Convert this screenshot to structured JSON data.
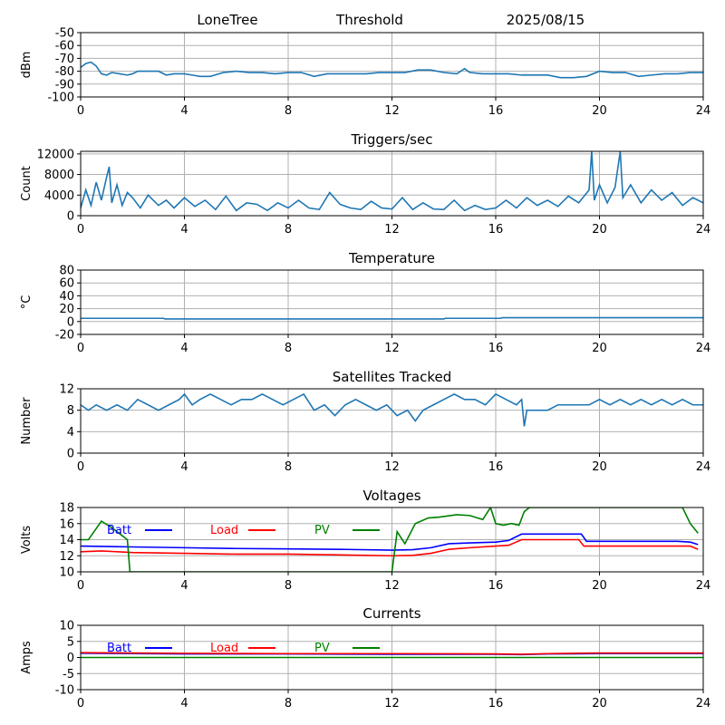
{
  "header": {
    "station": "LoneTree",
    "mode": "Threshold",
    "date": "2025/08/15"
  },
  "colors": {
    "series": "#1f77b4",
    "batt": "#0000ff",
    "load": "#ff0000",
    "pv": "#008000",
    "grid": "#b0b0b0"
  },
  "chart_data": [
    {
      "type": "line",
      "title": "",
      "ylabel": "dBm",
      "xlim": [
        0,
        24
      ],
      "ylim": [
        -100,
        -50
      ],
      "xticks": [
        0,
        4,
        8,
        12,
        16,
        20,
        24
      ],
      "yticks": [
        -100,
        -90,
        -80,
        -70,
        -60,
        -50
      ],
      "grid": true,
      "series": [
        {
          "x": [
            0,
            0.2,
            0.4,
            0.6,
            0.8,
            1.0,
            1.2,
            1.5,
            1.8,
            2.0,
            2.2,
            2.5,
            2.8,
            3.0,
            3.3,
            3.6,
            4.0,
            4.3,
            4.6,
            5.0,
            5.5,
            6.0,
            6.5,
            7.0,
            7.5,
            8.0,
            8.5,
            9.0,
            9.5,
            10.0,
            10.5,
            11.0,
            11.5,
            12.0,
            12.5,
            13.0,
            13.5,
            14.0,
            14.5,
            14.8,
            15.0,
            15.5,
            16.0,
            16.5,
            17.0,
            17.5,
            18.0,
            18.5,
            19.0,
            19.5,
            20.0,
            20.5,
            21.0,
            21.5,
            22.0,
            22.5,
            23.0,
            23.5,
            24.0
          ],
          "y": [
            -77,
            -74,
            -73,
            -76,
            -82,
            -83,
            -81,
            -82,
            -83,
            -82,
            -80,
            -80,
            -80,
            -80,
            -83,
            -82,
            -82,
            -83,
            -84,
            -84,
            -81,
            -80,
            -81,
            -81,
            -82,
            -81,
            -81,
            -84,
            -82,
            -82,
            -82,
            -82,
            -81,
            -81,
            -81,
            -79,
            -79,
            -81,
            -82,
            -78,
            -81,
            -82,
            -82,
            -82,
            -83,
            -83,
            -83,
            -85,
            -85,
            -84,
            -80,
            -81,
            -81,
            -84,
            -83,
            -82,
            -82,
            -81,
            -81
          ]
        }
      ]
    },
    {
      "type": "line",
      "title": "Triggers/sec",
      "ylabel": "Count",
      "xlim": [
        0,
        24
      ],
      "ylim": [
        0,
        12500
      ],
      "xticks": [
        0,
        4,
        8,
        12,
        16,
        20,
        24
      ],
      "yticks": [
        0,
        4000,
        8000,
        12000
      ],
      "grid": true,
      "series": [
        {
          "x": [
            0,
            0.2,
            0.4,
            0.6,
            0.8,
            1.0,
            1.1,
            1.2,
            1.4,
            1.6,
            1.8,
            2.0,
            2.3,
            2.6,
            3.0,
            3.3,
            3.6,
            4.0,
            4.4,
            4.8,
            5.2,
            5.6,
            6.0,
            6.4,
            6.8,
            7.2,
            7.6,
            8.0,
            8.4,
            8.8,
            9.2,
            9.6,
            10.0,
            10.4,
            10.8,
            11.2,
            11.6,
            12.0,
            12.4,
            12.8,
            13.2,
            13.6,
            14.0,
            14.4,
            14.8,
            15.2,
            15.6,
            16.0,
            16.4,
            16.8,
            17.2,
            17.6,
            18.0,
            18.4,
            18.8,
            19.2,
            19.6,
            19.7,
            19.8,
            20.0,
            20.3,
            20.6,
            20.8,
            20.9,
            21.2,
            21.6,
            22.0,
            22.4,
            22.8,
            23.2,
            23.6,
            24.0
          ],
          "y": [
            1500,
            5000,
            2000,
            6500,
            3000,
            7500,
            9500,
            2500,
            6000,
            2000,
            4500,
            3500,
            1500,
            4000,
            2000,
            3000,
            1500,
            3500,
            1800,
            3000,
            1200,
            3800,
            1000,
            2500,
            2200,
            1000,
            2500,
            1500,
            3000,
            1500,
            1200,
            4500,
            2200,
            1500,
            1200,
            2800,
            1500,
            1300,
            3500,
            1200,
            2500,
            1300,
            1200,
            3000,
            1000,
            2000,
            1200,
            1500,
            3000,
            1500,
            3500,
            2000,
            3000,
            1800,
            3800,
            2500,
            5000,
            12500,
            3000,
            6000,
            2500,
            5500,
            12500,
            3500,
            6000,
            2500,
            5000,
            3000,
            4500,
            2000,
            3500,
            2500
          ]
        }
      ]
    },
    {
      "type": "line",
      "title": "Temperature",
      "ylabel": "°C",
      "xlim": [
        0,
        24
      ],
      "ylim": [
        -20,
        80
      ],
      "xticks": [
        0,
        4,
        8,
        12,
        16,
        20,
        24
      ],
      "yticks": [
        -20,
        0,
        20,
        40,
        60,
        80
      ],
      "grid": true,
      "series": [
        {
          "x": [
            0,
            3.2,
            3.25,
            14,
            14.05,
            16.2,
            16.25,
            24
          ],
          "y": [
            5,
            5,
            4,
            4,
            5,
            5,
            6,
            6
          ]
        }
      ]
    },
    {
      "type": "line",
      "title": "Satellites Tracked",
      "ylabel": "Number",
      "xlim": [
        0,
        24
      ],
      "ylim": [
        0,
        12
      ],
      "xticks": [
        0,
        4,
        8,
        12,
        16,
        20,
        24
      ],
      "yticks": [
        0,
        4,
        8,
        12
      ],
      "grid": true,
      "series": [
        {
          "x": [
            0,
            0.3,
            0.6,
            1.0,
            1.4,
            1.8,
            2.2,
            2.6,
            3.0,
            3.4,
            3.8,
            4.0,
            4.3,
            4.6,
            5.0,
            5.4,
            5.8,
            6.2,
            6.6,
            7.0,
            7.4,
            7.8,
            8.2,
            8.6,
            9.0,
            9.4,
            9.8,
            10.2,
            10.6,
            11.0,
            11.4,
            11.8,
            12.2,
            12.6,
            12.9,
            13.2,
            13.6,
            14.0,
            14.4,
            14.8,
            15.2,
            15.6,
            16.0,
            16.4,
            16.8,
            17.0,
            17.1,
            17.2,
            17.6,
            18.0,
            18.4,
            18.8,
            19.2,
            19.6,
            20.0,
            20.4,
            20.8,
            21.2,
            21.6,
            22.0,
            22.4,
            22.8,
            23.2,
            23.6,
            24.0
          ],
          "y": [
            9,
            8,
            9,
            8,
            9,
            8,
            10,
            9,
            8,
            9,
            10,
            11,
            9,
            10,
            11,
            10,
            9,
            10,
            10,
            11,
            10,
            9,
            10,
            11,
            8,
            9,
            7,
            9,
            10,
            9,
            8,
            9,
            7,
            8,
            6,
            8,
            9,
            10,
            11,
            10,
            10,
            9,
            11,
            10,
            9,
            10,
            5,
            8,
            8,
            8,
            9,
            9,
            9,
            9,
            10,
            9,
            10,
            9,
            10,
            9,
            10,
            9,
            10,
            9,
            9
          ]
        }
      ]
    },
    {
      "type": "line",
      "title": "Voltages",
      "ylabel": "Volts",
      "xlim": [
        0,
        24
      ],
      "ylim": [
        10,
        18
      ],
      "xticks": [
        0,
        4,
        8,
        12,
        16,
        20,
        24
      ],
      "yticks": [
        10,
        12,
        14,
        16,
        18
      ],
      "grid": true,
      "legend": "inline-top-left",
      "series": [
        {
          "name": "Batt",
          "color_key": "batt",
          "x": [
            0,
            2,
            4,
            6,
            8,
            10,
            12,
            12.8,
            13.5,
            14.2,
            15,
            16,
            16.5,
            17,
            17.5,
            18,
            18.5,
            19.0,
            19.3,
            19.5,
            20,
            21,
            22,
            23,
            23.5,
            23.8
          ],
          "y": [
            13.2,
            13.1,
            13.0,
            12.9,
            12.85,
            12.8,
            12.7,
            12.75,
            13.0,
            13.5,
            13.6,
            13.7,
            13.9,
            14.7,
            14.7,
            14.7,
            14.7,
            14.7,
            14.7,
            13.8,
            13.8,
            13.8,
            13.8,
            13.8,
            13.7,
            13.4
          ]
        },
        {
          "name": "Load",
          "color_key": "load",
          "x": [
            0,
            0.8,
            2,
            4,
            6,
            8,
            10,
            12,
            12.8,
            13.5,
            14.2,
            15,
            16,
            16.5,
            17,
            18,
            19.2,
            19.4,
            20,
            21,
            22,
            23,
            23.5,
            23.8
          ],
          "y": [
            12.5,
            12.6,
            12.4,
            12.3,
            12.2,
            12.2,
            12.1,
            12.0,
            12.05,
            12.3,
            12.8,
            13.0,
            13.2,
            13.3,
            14.0,
            14.0,
            14.0,
            13.2,
            13.2,
            13.2,
            13.2,
            13.2,
            13.2,
            12.8
          ]
        },
        {
          "name": "PV",
          "color_key": "pv",
          "x": [
            0,
            0.3,
            0.8,
            1.2,
            1.6,
            1.8,
            1.9,
            12.0,
            12.2,
            12.5,
            12.9,
            13.4,
            13.8,
            14.5,
            15.0,
            15.5,
            15.8,
            16.0,
            16.3,
            16.6,
            16.9,
            17.1,
            17.3,
            23.2,
            23.5,
            23.8
          ],
          "y": [
            14.0,
            14.0,
            16.3,
            15.5,
            14.5,
            14.0,
            10.0,
            10.0,
            15.0,
            13.5,
            16.0,
            16.7,
            16.8,
            17.1,
            17.0,
            16.5,
            18.0,
            16.0,
            15.8,
            16.0,
            15.8,
            17.5,
            18.0,
            18.0,
            16.0,
            14.8
          ]
        }
      ]
    },
    {
      "type": "line",
      "title": "Currents",
      "ylabel": "Amps",
      "xlim": [
        0,
        24
      ],
      "ylim": [
        -10,
        10
      ],
      "xticks": [
        0,
        4,
        8,
        12,
        16,
        20,
        24
      ],
      "yticks": [
        -10,
        -5,
        0,
        5,
        10
      ],
      "grid": true,
      "legend": "inline-top-left",
      "series": [
        {
          "name": "Batt",
          "color_key": "batt",
          "x": [
            0,
            2,
            4,
            8,
            12,
            16,
            17,
            18,
            20,
            22,
            24
          ],
          "y": [
            1.3,
            1.2,
            1.1,
            1.1,
            1.0,
            1.0,
            0.9,
            1.1,
            1.2,
            1.2,
            1.2
          ]
        },
        {
          "name": "Load",
          "color_key": "load",
          "x": [
            0,
            2,
            4,
            8,
            12,
            16,
            17,
            18,
            20,
            22,
            24
          ],
          "y": [
            1.5,
            1.4,
            1.3,
            1.2,
            1.2,
            1.1,
            1.0,
            1.2,
            1.4,
            1.4,
            1.4
          ]
        },
        {
          "name": "PV",
          "color_key": "pv",
          "x": [
            0,
            24
          ],
          "y": [
            0.0,
            0.0
          ]
        }
      ]
    }
  ]
}
